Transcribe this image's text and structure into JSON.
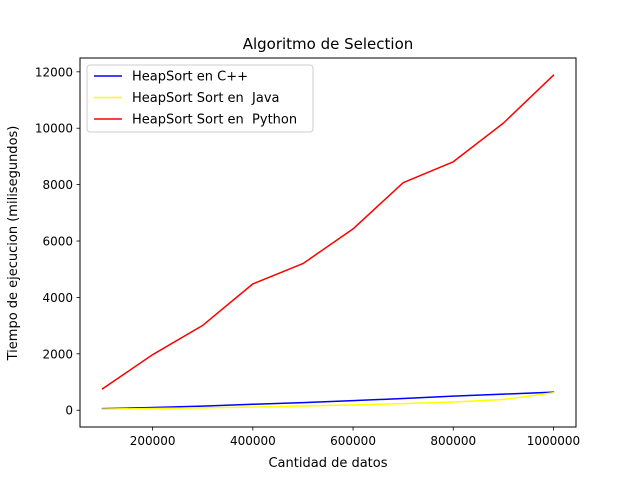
{
  "chart_data": {
    "type": "line",
    "title": "Algoritmo de  Selection",
    "xlabel": "Cantidad de datos",
    "ylabel": "Tiempo de ejecucion (milisegundos)",
    "x": [
      100000,
      200000,
      300000,
      400000,
      500000,
      600000,
      700000,
      800000,
      900000,
      1000000
    ],
    "xlim": [
      55000,
      1045000
    ],
    "ylim": [
      -595,
      12490
    ],
    "xticks": [
      200000,
      400000,
      600000,
      800000,
      1000000
    ],
    "xtick_labels": [
      "200000",
      "400000",
      "600000",
      "800000",
      "1000000"
    ],
    "yticks": [
      0,
      2000,
      4000,
      6000,
      8000,
      10000,
      12000
    ],
    "ytick_labels": [
      "0",
      "2000",
      "4000",
      "6000",
      "8000",
      "10000",
      "12000"
    ],
    "grid": false,
    "legend_position": "top-left",
    "series": [
      {
        "name": "HeapSort en C++",
        "color": "#0000ff",
        "values": [
          55,
          95,
          145,
          210,
          270,
          340,
          415,
          500,
          570,
          640
        ]
      },
      {
        "name": "HeapSort Sort en  Java",
        "color": "#ffff00",
        "values": [
          40,
          60,
          85,
          115,
          150,
          190,
          235,
          290,
          380,
          620
        ]
      },
      {
        "name": "HeapSort Sort en  Python",
        "color": "#ff0000",
        "values": [
          760,
          1970,
          3010,
          4480,
          5200,
          6430,
          8070,
          8810,
          10180,
          11880
        ]
      }
    ]
  }
}
